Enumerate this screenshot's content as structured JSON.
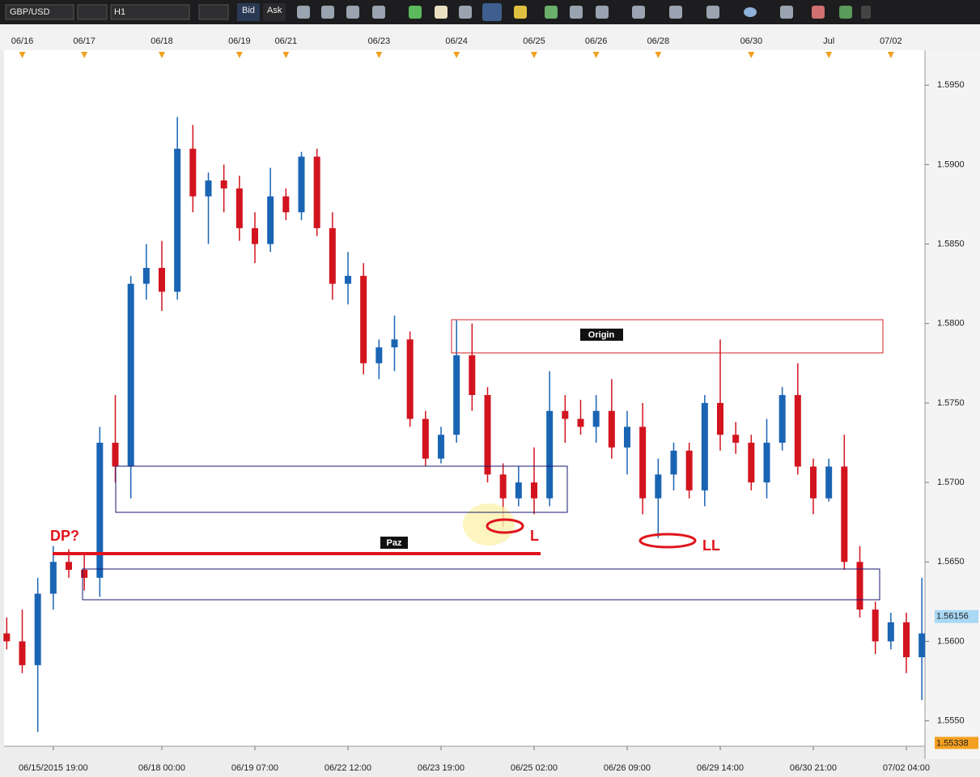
{
  "toolbar": {
    "symbol": "GBP/USD",
    "timeframe": "H1",
    "bid": "Bid",
    "ask": "Ask"
  },
  "chart_data": {
    "type": "candlestick",
    "categories": [
      null,
      null,
      null,
      "06/15/2015 19:00",
      null,
      null,
      null,
      null,
      null,
      null,
      "06/18 00:00",
      null,
      null,
      null,
      null,
      null,
      "06/19 07:00",
      null,
      null,
      null,
      null,
      null,
      "06/22 12:00",
      null,
      null,
      null,
      null,
      null,
      "06/23 19:00",
      null,
      null,
      null,
      null,
      null,
      "06/25 02:00",
      null,
      null,
      null,
      null,
      null,
      "06/26 09:00",
      null,
      null,
      null,
      null,
      null,
      "06/29 14:00",
      null,
      null,
      null,
      null,
      null,
      "06/30 21:00",
      null,
      null,
      null,
      null,
      null,
      "07/02 04:00",
      null
    ],
    "top_categories": [
      null,
      "06/16",
      null,
      null,
      null,
      "06/17",
      null,
      null,
      null,
      null,
      "06/18",
      null,
      null,
      null,
      null,
      "06/19",
      null,
      null,
      "06/21",
      null,
      null,
      null,
      null,
      null,
      "06/23",
      null,
      null,
      null,
      null,
      "06/24",
      null,
      null,
      null,
      null,
      "06/25",
      null,
      null,
      null,
      "06/26",
      null,
      null,
      null,
      "06/28",
      null,
      null,
      null,
      null,
      null,
      "06/30",
      null,
      null,
      null,
      null,
      "Jul",
      null,
      null,
      null,
      "07/02",
      null,
      null
    ],
    "open": [
      1.5605,
      1.56,
      1.5585,
      1.563,
      1.565,
      1.5645,
      1.564,
      1.5725,
      1.571,
      1.5825,
      1.5835,
      1.582,
      1.591,
      1.588,
      1.589,
      1.5885,
      1.586,
      1.585,
      1.588,
      1.587,
      1.5905,
      1.586,
      1.5825,
      1.583,
      1.5775,
      1.5785,
      1.579,
      1.574,
      1.5715,
      1.573,
      1.578,
      1.5755,
      1.5705,
      1.569,
      1.57,
      1.569,
      1.5745,
      1.574,
      1.5735,
      1.5745,
      1.5722,
      1.5735,
      1.569,
      1.5705,
      1.572,
      1.5695,
      1.575,
      1.573,
      1.5725,
      1.57,
      1.5725,
      1.5755,
      1.571,
      1.569,
      1.571,
      1.565,
      1.562,
      1.56,
      1.5612,
      1.559
    ],
    "high": [
      1.5615,
      1.562,
      1.564,
      1.566,
      1.5658,
      1.5655,
      1.5735,
      1.5755,
      1.583,
      1.585,
      1.5852,
      1.593,
      1.5925,
      1.5895,
      1.59,
      1.5893,
      1.587,
      1.5898,
      1.5885,
      1.5908,
      1.591,
      1.587,
      1.5845,
      1.5838,
      1.579,
      1.5805,
      1.5795,
      1.5745,
      1.5735,
      1.5802,
      1.58,
      1.576,
      1.5712,
      1.571,
      1.5722,
      1.577,
      1.5755,
      1.5752,
      1.5755,
      1.5765,
      1.5745,
      1.575,
      1.5715,
      1.5725,
      1.5725,
      1.5755,
      1.579,
      1.5738,
      1.573,
      1.574,
      1.576,
      1.5775,
      1.5715,
      1.5715,
      1.573,
      1.566,
      1.5625,
      1.5618,
      1.5618,
      1.564
    ],
    "low": [
      1.5595,
      1.558,
      1.5543,
      1.562,
      1.564,
      1.5632,
      1.5628,
      1.57,
      1.569,
      1.5815,
      1.5808,
      1.5815,
      1.587,
      1.585,
      1.587,
      1.5852,
      1.5838,
      1.5845,
      1.5865,
      1.5865,
      1.5855,
      1.5815,
      1.5812,
      1.5768,
      1.5765,
      1.577,
      1.5735,
      1.571,
      1.5712,
      1.5725,
      1.5745,
      1.57,
      1.5672,
      1.5685,
      1.568,
      1.5685,
      1.5725,
      1.573,
      1.5725,
      1.5715,
      1.5705,
      1.568,
      1.5665,
      1.5695,
      1.569,
      1.5685,
      1.572,
      1.5718,
      1.5695,
      1.569,
      1.572,
      1.5705,
      1.568,
      1.5688,
      1.5645,
      1.5615,
      1.5592,
      1.5595,
      1.558,
      1.5563
    ],
    "close": [
      1.56,
      1.5585,
      1.563,
      1.565,
      1.5645,
      1.564,
      1.5725,
      1.571,
      1.5825,
      1.5835,
      1.582,
      1.591,
      1.588,
      1.589,
      1.5885,
      1.586,
      1.585,
      1.588,
      1.587,
      1.5905,
      1.586,
      1.5825,
      1.583,
      1.5775,
      1.5785,
      1.579,
      1.574,
      1.5715,
      1.573,
      1.578,
      1.5755,
      1.5705,
      1.569,
      1.57,
      1.569,
      1.5745,
      1.574,
      1.5735,
      1.5745,
      1.5722,
      1.5735,
      1.569,
      1.5705,
      1.572,
      1.5695,
      1.575,
      1.573,
      1.5725,
      1.57,
      1.5725,
      1.5755,
      1.571,
      1.569,
      1.571,
      1.565,
      1.562,
      1.56,
      1.5612,
      1.559,
      1.5605
    ],
    "up_color": "#1a64b4",
    "down_color": "#d2141e",
    "ylim": [
      1.5534,
      1.5972
    ],
    "yticks": [
      {
        "value": 1.555,
        "label": "1.5550"
      },
      {
        "value": 1.56,
        "label": "1.5600"
      },
      {
        "value": 1.565,
        "label": "1.5650"
      },
      {
        "value": 1.57,
        "label": "1.5700"
      },
      {
        "value": 1.575,
        "label": "1.5750"
      },
      {
        "value": 1.58,
        "label": "1.5800"
      },
      {
        "value": 1.585,
        "label": "1.5850"
      },
      {
        "value": 1.59,
        "label": "1.5900"
      },
      {
        "value": 1.595,
        "label": "1.5950"
      }
    ],
    "last_price": 1.56156,
    "low_marker": 1.55338,
    "grid": false
  },
  "annotations": {
    "origin": "Origin",
    "paz": "Paz",
    "dp": "DP?",
    "l": "L",
    "ll": "LL"
  }
}
